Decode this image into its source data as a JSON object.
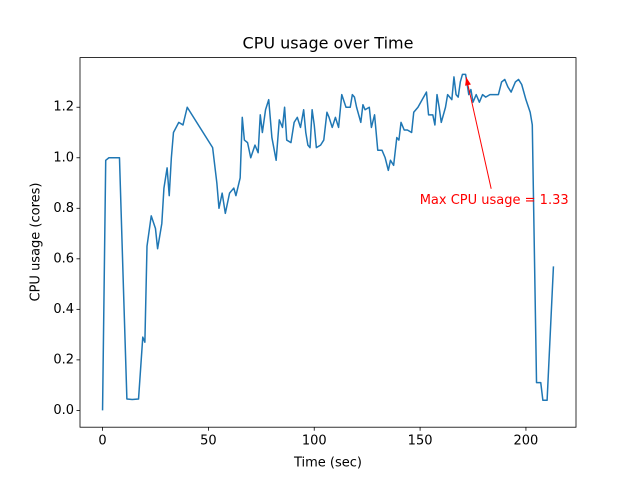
{
  "chart_data": {
    "type": "line",
    "title": "CPU usage over Time",
    "xlabel": "Time (sec)",
    "ylabel": "CPU usage (cores)",
    "xlim": [
      -10.65,
      223.65
    ],
    "ylim": [
      -0.0665,
      1.3965
    ],
    "xticks": [
      0,
      50,
      100,
      150,
      200
    ],
    "yticks": [
      {
        "value": 0,
        "label": "0.0"
      },
      {
        "value": 0.2,
        "label": "0.2"
      },
      {
        "value": 0.4,
        "label": "0.4"
      },
      {
        "value": 0.6,
        "label": "0.6"
      },
      {
        "value": 0.8,
        "label": "0.8"
      },
      {
        "value": 1,
        "label": "1.0"
      },
      {
        "value": 1.2,
        "label": "1.2"
      }
    ],
    "color": "#1f77b4",
    "x": [
      0,
      1.5,
      3,
      5,
      8,
      10,
      11.5,
      14,
      17,
      19,
      20,
      21,
      23,
      25,
      26,
      28,
      29,
      30.5,
      31.5,
      32.5,
      33.5,
      36,
      38,
      40,
      52,
      54,
      55,
      56.5,
      58,
      60,
      62,
      63,
      65,
      66,
      67,
      68.5,
      70,
      72,
      73.5,
      74.5,
      75.5,
      77,
      78.5,
      80,
      82,
      83.5,
      85,
      86,
      87,
      89,
      90.5,
      92,
      93.5,
      95,
      96,
      97,
      98,
      99,
      100,
      101,
      103,
      104.5,
      106,
      107,
      108.5,
      110,
      111.5,
      113,
      115,
      117,
      118,
      119,
      120,
      122,
      123,
      124,
      126,
      127,
      128.5,
      130,
      132,
      133.5,
      135,
      136,
      137.5,
      139,
      140,
      141,
      142.5,
      144,
      146,
      147,
      149,
      151,
      153,
      154,
      156,
      157,
      158,
      159,
      160,
      162,
      163,
      164,
      165,
      166,
      167,
      168,
      169,
      170,
      171.5,
      173,
      174,
      175,
      176.5,
      178,
      179.5,
      181,
      183,
      185,
      187,
      188.5,
      190,
      191.5,
      193,
      195,
      196.5,
      198,
      200,
      202,
      203,
      205,
      207,
      208,
      210,
      213
    ],
    "values": [
      0,
      0.99,
      1.0,
      1.0,
      1.0,
      0.45,
      0.045,
      0.043,
      0.045,
      0.29,
      0.27,
      0.65,
      0.77,
      0.72,
      0.64,
      0.74,
      0.88,
      0.96,
      0.85,
      1.0,
      1.1,
      1.14,
      1.13,
      1.2,
      1.04,
      0.9,
      0.8,
      0.86,
      0.78,
      0.86,
      0.88,
      0.85,
      0.92,
      1.16,
      1.07,
      1.06,
      1.0,
      1.05,
      1.02,
      1.17,
      1.1,
      1.19,
      1.23,
      1.08,
      0.99,
      1.15,
      1.12,
      1.2,
      1.07,
      1.06,
      1.14,
      1.16,
      1.12,
      1.19,
      1.1,
      1.05,
      1.04,
      1.19,
      1.13,
      1.04,
      1.05,
      1.07,
      1.18,
      1.16,
      1.12,
      1.16,
      1.12,
      1.25,
      1.2,
      1.2,
      1.25,
      1.24,
      1.2,
      1.14,
      1.21,
      1.19,
      1.2,
      1.12,
      1.17,
      1.03,
      1.03,
      1.0,
      0.95,
      0.99,
      0.97,
      1.08,
      1.07,
      1.14,
      1.11,
      1.11,
      1.1,
      1.18,
      1.2,
      1.23,
      1.26,
      1.17,
      1.17,
      1.13,
      1.25,
      1.2,
      1.14,
      1.2,
      1.25,
      1.24,
      1.23,
      1.32,
      1.25,
      1.24,
      1.3,
      1.33,
      1.33,
      1.25,
      1.27,
      1.22,
      1.25,
      1.22,
      1.25,
      1.24,
      1.25,
      1.25,
      1.25,
      1.3,
      1.31,
      1.28,
      1.26,
      1.3,
      1.31,
      1.29,
      1.23,
      1.18,
      1.13,
      0.11,
      0.11,
      0.04,
      0.04,
      0.57
    ],
    "annotation": {
      "text": "Max CPU usage = 1.33",
      "xy": [
        171.5,
        1.33
      ],
      "xytext": [
        185,
        0.83
      ],
      "color": "red"
    }
  }
}
